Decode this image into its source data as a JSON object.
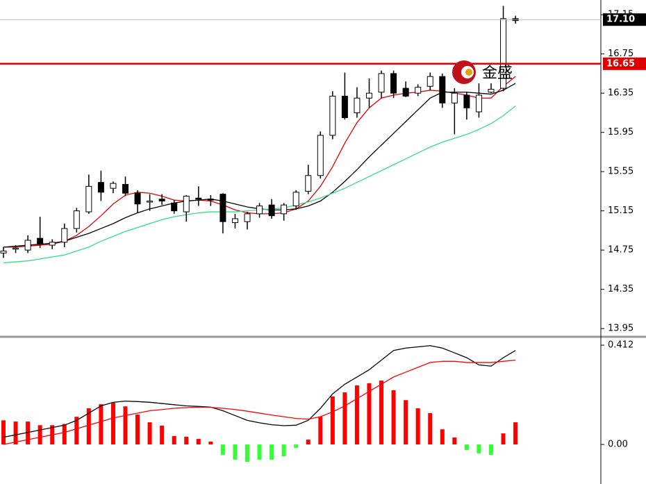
{
  "chart_data": [
    {
      "type": "candlestick",
      "open": [
        14.72,
        14.76,
        14.75,
        14.87,
        14.8,
        14.83,
        14.97,
        15.14,
        15.44,
        15.38,
        15.42,
        15.33,
        15.24,
        15.27,
        15.23,
        15.14,
        15.28,
        15.27,
        15.32,
        15.03,
        15.04,
        15.12,
        15.21,
        15.12,
        15.2,
        15.35,
        15.51,
        15.92,
        16.32,
        16.15,
        16.3,
        16.36,
        16.55,
        16.4,
        16.35,
        16.42,
        16.52,
        16.25,
        16.33,
        16.16,
        16.36,
        16.4,
        17.11
      ],
      "high": [
        14.78,
        14.8,
        14.9,
        15.09,
        14.86,
        15.02,
        15.18,
        15.52,
        15.56,
        15.45,
        15.5,
        15.36,
        15.32,
        15.32,
        15.26,
        15.31,
        15.4,
        15.31,
        15.33,
        15.12,
        15.14,
        15.23,
        15.27,
        15.23,
        15.36,
        15.62,
        15.96,
        16.37,
        16.56,
        16.41,
        16.5,
        16.58,
        16.58,
        16.47,
        16.44,
        16.56,
        16.55,
        16.4,
        16.36,
        16.45,
        16.45,
        17.24,
        17.14
      ],
      "low": [
        14.67,
        14.72,
        14.72,
        14.77,
        14.76,
        14.78,
        14.93,
        15.12,
        15.25,
        15.33,
        15.3,
        15.13,
        15.15,
        15.21,
        15.12,
        15.04,
        15.2,
        15.2,
        14.92,
        14.97,
        14.96,
        15.08,
        15.07,
        15.05,
        15.16,
        15.32,
        15.48,
        15.88,
        16.08,
        16.1,
        16.2,
        16.3,
        16.3,
        16.31,
        16.32,
        16.38,
        16.2,
        15.93,
        16.08,
        16.1,
        16.35,
        16.37,
        17.06
      ],
      "close": [
        14.74,
        14.77,
        14.85,
        14.81,
        14.83,
        14.97,
        15.15,
        15.4,
        15.34,
        15.43,
        15.33,
        15.22,
        15.25,
        15.25,
        15.15,
        15.3,
        15.27,
        15.26,
        15.04,
        15.07,
        15.12,
        15.2,
        15.1,
        15.21,
        15.34,
        15.51,
        15.92,
        16.32,
        16.1,
        16.3,
        16.35,
        16.55,
        16.35,
        16.32,
        16.41,
        16.52,
        16.25,
        16.35,
        16.2,
        16.33,
        16.39,
        17.11,
        17.09
      ],
      "up_color": "#ffffff",
      "down_color": "#000000",
      "lines": [
        {
          "color": "#e00000",
          "values": [
            14.78,
            14.78,
            14.79,
            14.8,
            14.81,
            14.84,
            14.9,
            14.99,
            15.1,
            15.22,
            15.31,
            15.34,
            15.33,
            15.3,
            15.26,
            15.25,
            15.26,
            15.25,
            15.21,
            15.16,
            15.13,
            15.12,
            15.12,
            15.13,
            15.17,
            15.25,
            15.4,
            15.6,
            15.84,
            16.05,
            16.2,
            16.3,
            16.33,
            16.35,
            16.36,
            16.38,
            16.37,
            16.35,
            16.33,
            16.3,
            16.3,
            16.42,
            16.52
          ]
        },
        {
          "color": "#000000",
          "values": [
            14.78,
            14.79,
            14.8,
            14.81,
            14.82,
            14.84,
            14.88,
            14.92,
            14.97,
            15.02,
            15.08,
            15.13,
            15.17,
            15.2,
            15.23,
            15.25,
            15.26,
            15.27,
            15.25,
            15.22,
            15.19,
            15.17,
            15.16,
            15.16,
            15.17,
            15.2,
            15.25,
            15.34,
            15.45,
            15.57,
            15.7,
            15.82,
            15.94,
            16.06,
            16.18,
            16.3,
            16.36,
            16.36,
            16.36,
            16.35,
            16.34,
            16.38,
            16.45
          ]
        },
        {
          "color": "#33e080",
          "values": [
            14.62,
            14.63,
            14.64,
            14.66,
            14.68,
            14.7,
            14.74,
            14.78,
            14.84,
            14.89,
            14.94,
            14.98,
            15.02,
            15.06,
            15.09,
            15.11,
            15.13,
            15.14,
            15.14,
            15.14,
            15.15,
            15.16,
            15.17,
            15.18,
            15.21,
            15.24,
            15.28,
            15.33,
            15.38,
            15.44,
            15.5,
            15.56,
            15.62,
            15.68,
            15.74,
            15.8,
            15.85,
            15.89,
            15.93,
            15.98,
            16.04,
            16.12,
            16.22
          ]
        }
      ],
      "ylim": [
        13.88,
        17.3
      ],
      "yticks": [
        13.95,
        14.35,
        14.75,
        15.15,
        15.55,
        15.95,
        16.35,
        16.75,
        17.15
      ],
      "hline": {
        "value": 16.65,
        "color": "#e00000"
      },
      "last_price": {
        "value": 17.1,
        "label": "17.10"
      },
      "logo_text": "金盛"
    },
    {
      "type": "macd",
      "histogram": [
        0.1,
        0.095,
        0.095,
        0.08,
        0.08,
        0.085,
        0.115,
        0.15,
        0.167,
        0.173,
        0.158,
        0.124,
        0.092,
        0.078,
        0.035,
        0.032,
        0.023,
        0.012,
        -0.043,
        -0.063,
        -0.072,
        -0.063,
        -0.063,
        -0.049,
        -0.014,
        0.02,
        0.115,
        0.199,
        0.216,
        0.245,
        0.254,
        0.265,
        0.225,
        0.184,
        0.15,
        0.13,
        0.063,
        0.029,
        -0.023,
        -0.037,
        -0.043,
        0.046,
        0.092
      ],
      "up_color": "#ff0000",
      "down_color": "#33ff33",
      "lines": [
        {
          "color": "#000000",
          "values": [
            0.03,
            0.04,
            0.05,
            0.06,
            0.07,
            0.08,
            0.1,
            0.13,
            0.16,
            0.175,
            0.18,
            0.178,
            0.175,
            0.17,
            0.165,
            0.16,
            0.158,
            0.155,
            0.14,
            0.12,
            0.1,
            0.09,
            0.082,
            0.078,
            0.08,
            0.1,
            0.15,
            0.21,
            0.25,
            0.28,
            0.31,
            0.35,
            0.39,
            0.4,
            0.405,
            0.41,
            0.4,
            0.38,
            0.36,
            0.33,
            0.325,
            0.36,
            0.39
          ]
        },
        {
          "color": "#ff0000",
          "values": [
            0.0,
            0.01,
            0.02,
            0.03,
            0.04,
            0.05,
            0.065,
            0.08,
            0.095,
            0.11,
            0.12,
            0.13,
            0.14,
            0.145,
            0.15,
            0.153,
            0.155,
            0.154,
            0.15,
            0.145,
            0.138,
            0.13,
            0.122,
            0.115,
            0.108,
            0.105,
            0.115,
            0.135,
            0.16,
            0.19,
            0.22,
            0.25,
            0.28,
            0.3,
            0.32,
            0.34,
            0.345,
            0.345,
            0.34,
            0.34,
            0.34,
            0.345,
            0.35
          ]
        }
      ],
      "ylim": [
        -0.164,
        0.441
      ],
      "yticks": [
        {
          "value": 0,
          "label": "0.00"
        },
        0.412
      ]
    }
  ]
}
